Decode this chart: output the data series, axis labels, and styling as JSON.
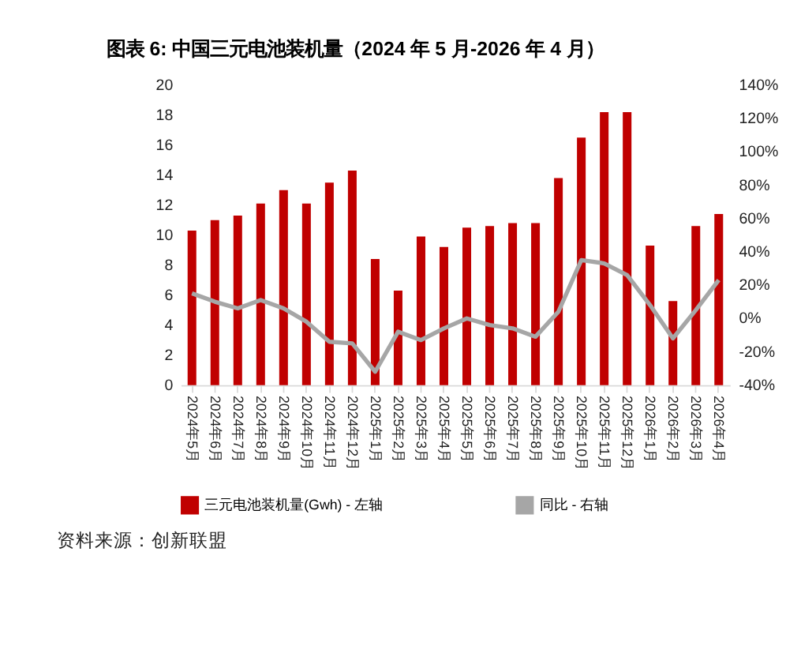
{
  "chart_data": {
    "type": "bar",
    "title": "图表 6: 中国三元电池装机量（2024 年 5 月-2026 年 4 月）",
    "categories": [
      "2024年5月",
      "2024年6月",
      "2024年7月",
      "2024年8月",
      "2024年9月",
      "2024年10月",
      "2024年11月",
      "2024年12月",
      "2025年1月",
      "2025年2月",
      "2025年3月",
      "2025年4月",
      "2025年5月",
      "2025年6月",
      "2025年7月",
      "2025年8月",
      "2025年9月",
      "2025年10月",
      "2025年11月",
      "2025年12月",
      "2026年1月",
      "2026年2月",
      "2026年3月",
      "2026年4月"
    ],
    "series": [
      {
        "name": "三元电池装机量(Gwh) - 左轴",
        "color": "#c00000",
        "values": [
          10.3,
          11.0,
          11.3,
          12.1,
          13.0,
          12.1,
          13.5,
          14.3,
          8.4,
          6.3,
          9.9,
          9.2,
          10.5,
          10.6,
          10.8,
          10.8,
          13.8,
          16.5,
          18.2,
          18.2,
          9.3,
          5.6,
          10.6,
          11.4
        ]
      },
      {
        "name": "同比 - 右轴",
        "type": "line",
        "axis": "y2",
        "color": "#a6a6a6",
        "values": [
          15,
          10,
          6,
          11,
          6,
          -2,
          -14,
          -15,
          -32,
          -8,
          -13,
          -6,
          0,
          -4,
          -6,
          -11,
          4,
          35,
          33,
          26,
          8,
          -12,
          5,
          23
        ]
      }
    ],
    "ylim": [
      0,
      20
    ],
    "yticks": [
      0,
      2,
      4,
      6,
      8,
      10,
      12,
      14,
      16,
      18,
      20
    ],
    "y2lim": [
      -40,
      140
    ],
    "y2ticks": [
      {
        "value": -40,
        "label": "-40%"
      },
      {
        "value": -20,
        "label": "-20%"
      },
      {
        "value": 0,
        "label": "0%"
      },
      {
        "value": 20,
        "label": "20%"
      },
      {
        "value": 40,
        "label": "40%"
      },
      {
        "value": 60,
        "label": "60%"
      },
      {
        "value": 80,
        "label": "80%"
      },
      {
        "value": 100,
        "label": "100%"
      },
      {
        "value": 120,
        "label": "120%"
      },
      {
        "value": 140,
        "label": "140%"
      }
    ],
    "grid": false,
    "legend": "bottom",
    "marker": "none",
    "line_style": "solid",
    "annotations": [
      "资料来源：创新联盟"
    ]
  }
}
